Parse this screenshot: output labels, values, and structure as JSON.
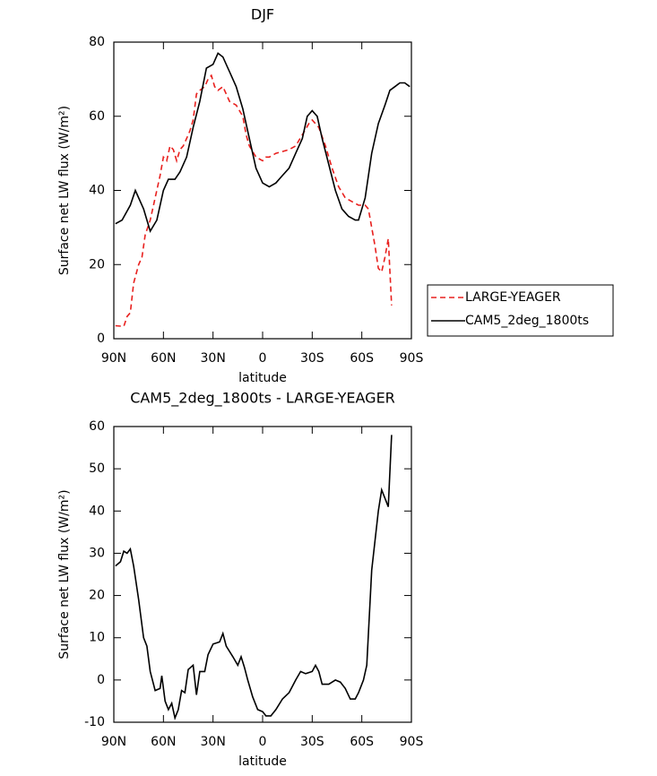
{
  "chart_data": [
    {
      "type": "line",
      "title": "DJF",
      "xlabel": "latitude",
      "ylabel": "Surface net LW flux (W/m²)",
      "xlim": [
        90,
        -90
      ],
      "ylim": [
        0,
        80
      ],
      "xticks": [
        {
          "value": 90,
          "label": "90N"
        },
        {
          "value": 60,
          "label": "60N"
        },
        {
          "value": 30,
          "label": "30N"
        },
        0,
        {
          "value": -30,
          "label": "30S"
        },
        {
          "value": -60,
          "label": "60S"
        },
        {
          "value": -90,
          "label": "90S"
        }
      ],
      "yticks": [
        0,
        20,
        40,
        60,
        80
      ],
      "legend": "outside-right",
      "series": [
        {
          "name": "LARGE-YEAGER",
          "color": "#e8201e",
          "dash": true,
          "x": [
            89,
            84,
            82,
            80,
            78,
            75,
            73,
            71,
            68,
            65,
            62,
            60,
            58,
            56,
            54,
            52,
            50,
            48,
            46,
            44,
            42,
            40,
            38,
            35,
            33,
            31,
            29,
            27,
            24,
            22,
            20,
            16,
            12,
            10,
            8,
            4,
            0,
            -2,
            -4,
            -8,
            -12,
            -16,
            -20,
            -24,
            -28,
            -30,
            -34,
            -38,
            -42,
            -46,
            -50,
            -54,
            -58,
            -62,
            -64,
            -66,
            -68,
            -70,
            -72,
            -74,
            -76,
            -78
          ],
          "values": [
            3.5,
            3.3,
            6,
            7,
            15,
            20,
            22,
            28,
            32,
            38,
            44,
            49,
            48,
            52,
            51,
            48,
            51,
            52,
            54,
            56,
            59,
            66,
            67,
            68,
            70,
            71,
            68,
            67,
            68,
            66,
            64,
            63,
            60,
            55,
            52,
            49,
            48,
            49,
            49,
            50,
            50.5,
            51,
            52,
            55,
            58,
            59,
            57,
            52,
            46,
            41,
            38,
            37,
            36,
            36,
            35,
            30,
            25,
            19,
            18,
            22,
            27,
            9
          ]
        },
        {
          "name": "CAM5_2deg_1800ts",
          "color": "#000000",
          "dash": false,
          "x": [
            89,
            85,
            80,
            77,
            72,
            68,
            64,
            60,
            57,
            53,
            50,
            46,
            42,
            38,
            34,
            30,
            27,
            24,
            20,
            16,
            12,
            8,
            4,
            0,
            -4,
            -8,
            -12,
            -16,
            -20,
            -24,
            -27,
            -30,
            -33,
            -36,
            -40,
            -44,
            -48,
            -52,
            -56,
            -58,
            -62,
            -66,
            -70,
            -74,
            -77,
            -80,
            -83,
            -86,
            -89
          ],
          "values": [
            31,
            32,
            36,
            40,
            35,
            29,
            32,
            40,
            43,
            43,
            45,
            49,
            57,
            64,
            73,
            74,
            77,
            76,
            72,
            68,
            62,
            54,
            46,
            42,
            41,
            42,
            44,
            46,
            50,
            54,
            60,
            61.5,
            60,
            54,
            47,
            40,
            35,
            33,
            32,
            32,
            38,
            50,
            58,
            63,
            67,
            68,
            69,
            69,
            68
          ]
        }
      ]
    },
    {
      "type": "line",
      "title": "CAM5_2deg_1800ts - LARGE-YEAGER",
      "xlabel": "latitude",
      "ylabel": "Surface net LW flux (W/m²)",
      "xlim": [
        90,
        -90
      ],
      "ylim": [
        -10,
        60
      ],
      "xticks": [
        {
          "value": 90,
          "label": "90N"
        },
        {
          "value": 60,
          "label": "60N"
        },
        {
          "value": 30,
          "label": "30N"
        },
        0,
        {
          "value": -30,
          "label": "30S"
        },
        {
          "value": -60,
          "label": "60S"
        },
        {
          "value": -90,
          "label": "90S"
        }
      ],
      "yticks": [
        -10,
        0,
        10,
        20,
        30,
        40,
        50,
        60
      ],
      "series": [
        {
          "color": "#000000",
          "dash": false,
          "x": [
            89,
            86,
            84,
            82,
            80,
            78,
            75,
            72,
            70,
            68,
            65,
            62,
            61,
            59,
            57,
            55,
            53,
            51,
            49,
            47,
            45,
            42,
            40,
            38,
            35,
            33,
            30,
            26,
            24,
            22,
            18,
            15,
            13,
            11,
            9,
            6,
            3,
            0,
            -2,
            -5,
            -8,
            -12,
            -16,
            -20,
            -23,
            -26,
            -30,
            -32,
            -34,
            -36,
            -40,
            -44,
            -47,
            -50,
            -53,
            -56,
            -58,
            -61,
            -63,
            -66,
            -70,
            -72,
            -74,
            -76,
            -78
          ],
          "values": [
            27,
            28,
            30.5,
            30,
            31,
            27,
            19,
            10,
            8,
            2,
            -2.5,
            -2,
            1,
            -5,
            -7,
            -5.5,
            -9,
            -7,
            -2.5,
            -3,
            2.5,
            3.5,
            -3.5,
            2,
            2,
            6,
            8.5,
            9,
            11,
            8,
            5.5,
            3.5,
            5.5,
            3,
            0,
            -4,
            -7,
            -7.5,
            -8.5,
            -8.5,
            -7,
            -4.5,
            -3,
            0,
            2,
            1.5,
            2,
            3.5,
            2,
            -1,
            -1,
            0,
            -0.5,
            -2,
            -4.5,
            -4.5,
            -3,
            0,
            3.5,
            26,
            40,
            45,
            43,
            41,
            58
          ]
        }
      ]
    }
  ]
}
